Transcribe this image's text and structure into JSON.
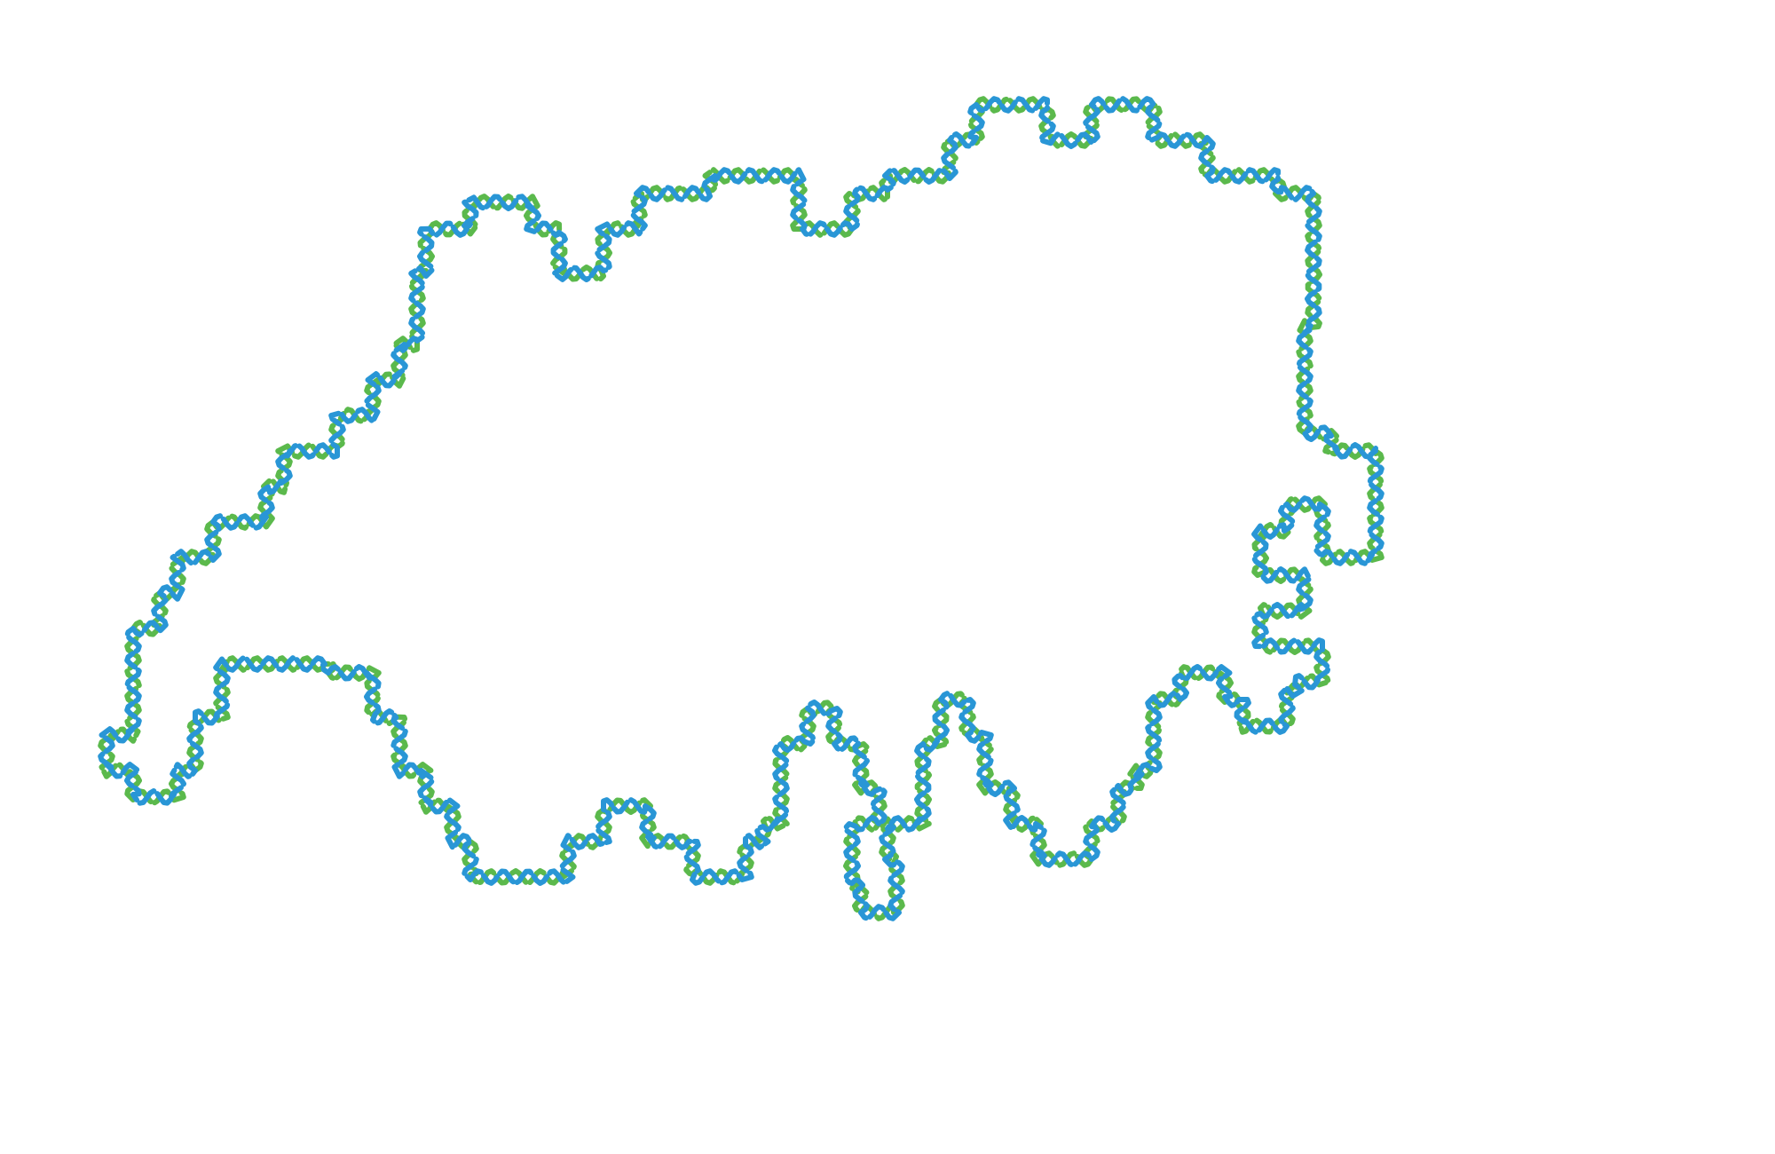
{
  "graphic": {
    "background": "#ffffff",
    "subject": "switzerland-outline",
    "colors": {
      "strand_a": "#2996d6",
      "strand_b": "#5bb94c"
    }
  }
}
